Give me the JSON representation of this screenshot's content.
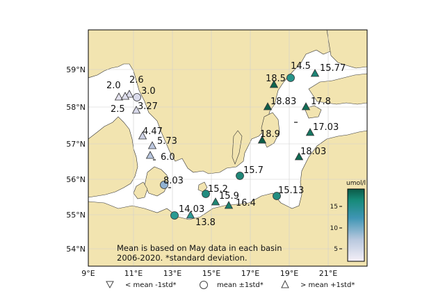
{
  "map": {
    "axis_x_ticks": [
      "9°E",
      "11°E",
      "13°E",
      "15°E",
      "17°E",
      "19°E",
      "21°E"
    ],
    "axis_y_ticks": [
      "54°N",
      "55°N",
      "56°N",
      "57°N",
      "58°N",
      "59°N"
    ],
    "note_line1": "Mean is based on May data in each basin",
    "note_line2": "2006-2020. *standard deviation.",
    "colorbar_unit": "umol/l",
    "colorbar_ticks": [
      "15",
      "10",
      "5"
    ],
    "legend": {
      "below": "< mean -1std*",
      "mean": "mean ±1std*",
      "above": "> mean +1std*"
    },
    "colors": {
      "land": "#f2e4b0",
      "sea": "#ffffff",
      "grid": "#d0d0d0",
      "high": "#0f6b53",
      "mid": "#2a9a92",
      "low": "#efe8f3"
    },
    "stations": [
      {
        "label": "2.0",
        "value": 2.0,
        "marker": "triangle-up"
      },
      {
        "label": "2.6",
        "value": 2.6,
        "marker": "triangle-up"
      },
      {
        "label": "3.0",
        "value": 3.0,
        "marker": "circle"
      },
      {
        "label": "2.5",
        "value": 2.5,
        "marker": "triangle-up"
      },
      {
        "label": "3.27",
        "value": 3.27,
        "marker": "triangle-up"
      },
      {
        "label": "4.47",
        "value": 4.47,
        "marker": "triangle-up"
      },
      {
        "label": "5.73",
        "value": 5.73,
        "marker": "triangle-up"
      },
      {
        "label": "6.0",
        "value": 6.0,
        "marker": "triangle-up"
      },
      {
        "label": "8.03",
        "value": 8.03,
        "marker": "circle"
      },
      {
        "label": "14.03",
        "value": 14.03,
        "marker": "circle"
      },
      {
        "label": "13.8",
        "value": 13.8,
        "marker": "triangle-up"
      },
      {
        "label": "15.2",
        "value": 15.2,
        "marker": "circle"
      },
      {
        "label": "15.9",
        "value": 15.9,
        "marker": "triangle-up"
      },
      {
        "label": "16.4",
        "value": 16.4,
        "marker": "triangle-up"
      },
      {
        "label": "15.7",
        "value": 15.7,
        "marker": "circle"
      },
      {
        "label": "15.13",
        "value": 15.13,
        "marker": "circle"
      },
      {
        "label": "18.9",
        "value": 18.9,
        "marker": "triangle-up"
      },
      {
        "label": "18.5",
        "value": 18.5,
        "marker": "triangle-up"
      },
      {
        "label": "14.5",
        "value": 14.5,
        "marker": "circle"
      },
      {
        "label": "15.77",
        "value": 15.77,
        "marker": "triangle-up"
      },
      {
        "label": "18.83",
        "value": 18.83,
        "marker": "triangle-up"
      },
      {
        "label": "17.8",
        "value": 17.8,
        "marker": "triangle-up"
      },
      {
        "label": "17.03",
        "value": 17.03,
        "marker": "triangle-up"
      },
      {
        "label": "18.03",
        "value": 18.03,
        "marker": "triangle-up"
      }
    ]
  }
}
